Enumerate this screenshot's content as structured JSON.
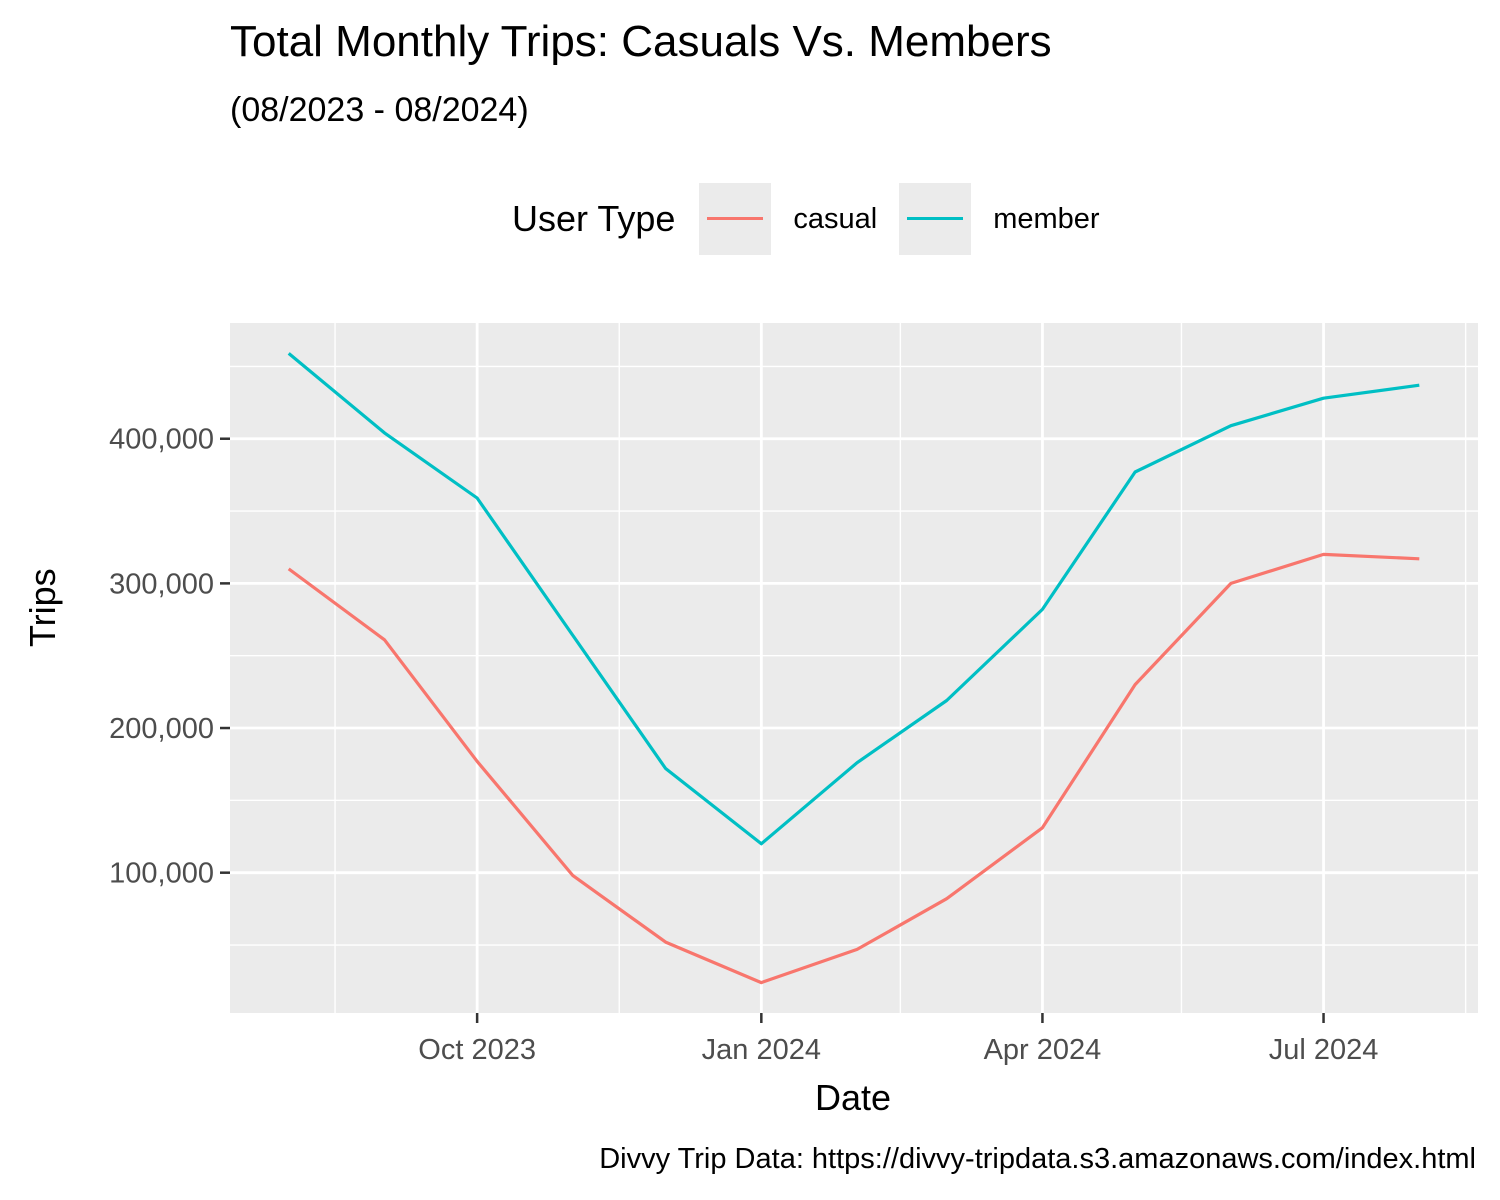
{
  "chart_data": {
    "type": "line",
    "title": "Total Monthly Trips: Casuals Vs. Members",
    "subtitle": "(08/2023 - 08/2024)",
    "xlabel": "Date",
    "ylabel": "Trips",
    "caption": "Divvy Trip Data: https://divvy-tripdata.s3.amazonaws.com/index.html",
    "legend_title": "User Type",
    "legend_position": "top",
    "x": [
      "2023-08-01",
      "2023-09-01",
      "2023-10-01",
      "2023-11-01",
      "2023-12-01",
      "2024-01-01",
      "2024-02-01",
      "2024-03-01",
      "2024-04-01",
      "2024-05-01",
      "2024-06-01",
      "2024-07-01",
      "2024-08-01"
    ],
    "series": [
      {
        "name": "casual",
        "color": "#F8766D",
        "values": [
          310000,
          261000,
          177000,
          98000,
          52000,
          24000,
          47000,
          82000,
          131000,
          230000,
          300000,
          320000,
          317000
        ]
      },
      {
        "name": "member",
        "color": "#00BFC4",
        "values": [
          459000,
          404000,
          359000,
          264000,
          172000,
          120000,
          176000,
          219000,
          282000,
          377000,
          409000,
          428000,
          437000
        ]
      }
    ],
    "xlim": [
      "2023-07-13",
      "2024-08-20"
    ],
    "ylim": [
      3000,
      480000
    ],
    "y_ticks": [
      100000,
      200000,
      300000,
      400000
    ],
    "y_tick_labels": [
      "100,000",
      "200,000",
      "300,000",
      "400,000"
    ],
    "y_minor_ticks": [
      50000,
      150000,
      250000,
      350000,
      450000
    ],
    "x_ticks": [
      "2023-10-01",
      "2024-01-01",
      "2024-04-01",
      "2024-07-01"
    ],
    "x_tick_labels": [
      "Oct 2023",
      "Jan 2024",
      "Apr 2024",
      "Jul 2024"
    ],
    "x_minor_ticks": [
      "2023-08-16",
      "2023-11-16",
      "2024-02-15",
      "2024-05-16",
      "2024-08-16"
    ],
    "grid": true,
    "panel_color": "#EBEBEB"
  }
}
